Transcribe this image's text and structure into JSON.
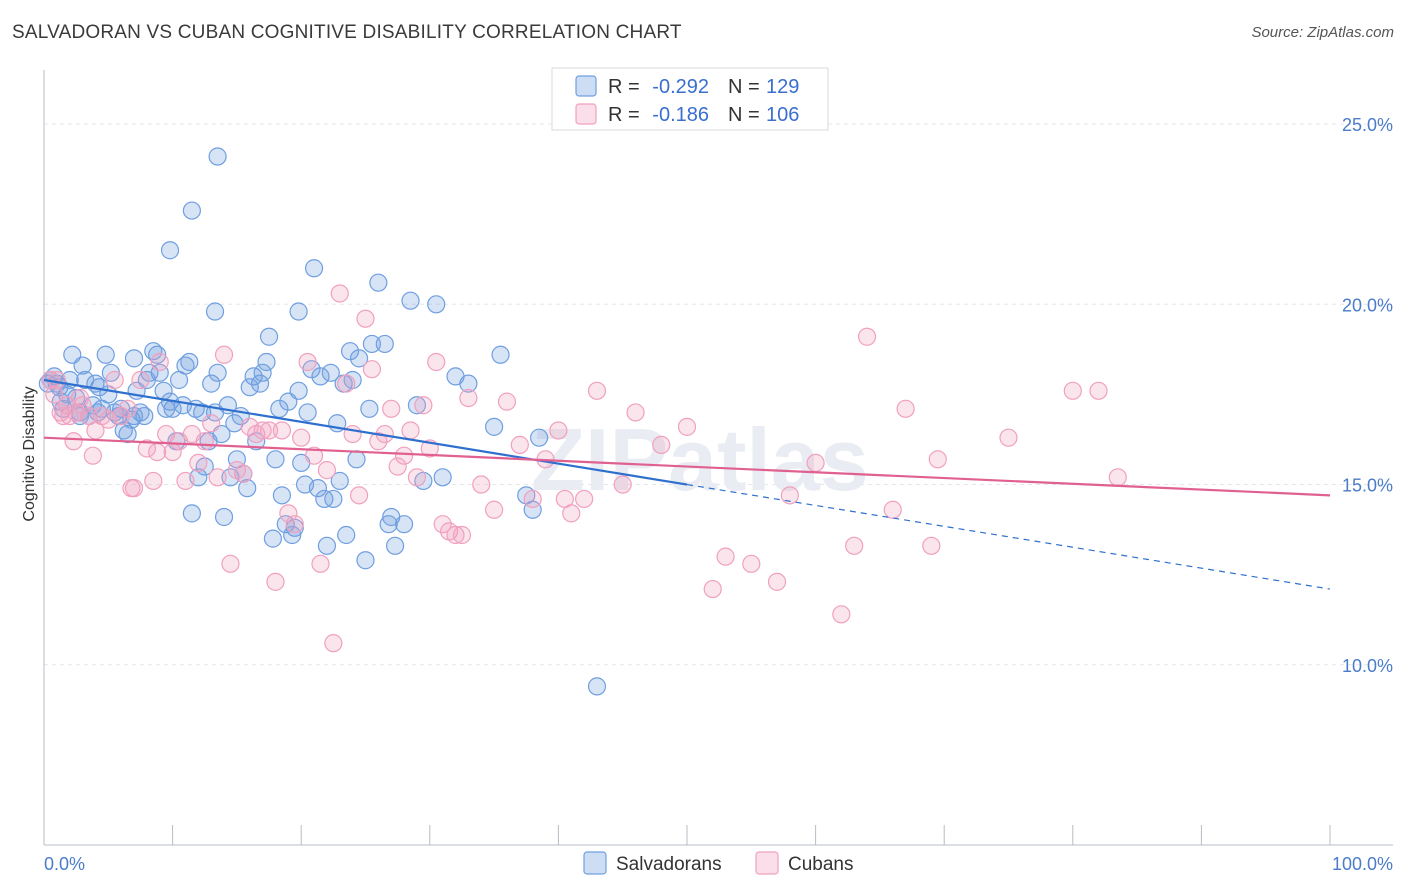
{
  "title": "SALVADORAN VS CUBAN COGNITIVE DISABILITY CORRELATION CHART",
  "source": "Source: ZipAtlas.com",
  "watermark": "ZIPatlas",
  "chart_data": {
    "type": "scatter",
    "ylabel": "Cognitive Disability",
    "xlim": [
      0,
      100
    ],
    "ylim": [
      5,
      26.5
    ],
    "y_ticks": [
      {
        "value": 10,
        "label": "10.0%"
      },
      {
        "value": 15,
        "label": "15.0%"
      },
      {
        "value": 20,
        "label": "20.0%"
      },
      {
        "value": 25,
        "label": "25.0%"
      }
    ],
    "x_tick_labels": {
      "min": "0.0%",
      "max": "100.0%"
    },
    "grid": true,
    "legend_placement": "top-center",
    "legend": {
      "rows": [
        {
          "r_label": "R = ",
          "r_value": "-0.292",
          "n_label": "N = ",
          "n_value": "129"
        },
        {
          "r_label": "R = ",
          "r_value": "-0.186",
          "n_label": "N = ",
          "n_value": "106"
        }
      ]
    },
    "series": [
      {
        "name": "Salvadorans",
        "color": "#6f9fe0",
        "line_color": "#2f6fce",
        "trend": {
          "x0": 0,
          "y0": 17.9,
          "x1": 50,
          "y1": 15.0,
          "dashed_to_x": 100,
          "dashed_to_y": 12.1
        },
        "points": [
          [
            0.5,
            17.9
          ],
          [
            0.8,
            18.0
          ],
          [
            1.0,
            17.8
          ],
          [
            1.2,
            17.7
          ],
          [
            1.5,
            17.1
          ],
          [
            1.8,
            17.5
          ],
          [
            2.0,
            17.9
          ],
          [
            2.2,
            18.6
          ],
          [
            2.5,
            17.4
          ],
          [
            2.8,
            17.0
          ],
          [
            3.0,
            18.3
          ],
          [
            3.2,
            17.9
          ],
          [
            3.5,
            16.9
          ],
          [
            3.8,
            17.2
          ],
          [
            4.0,
            17.8
          ],
          [
            4.2,
            17.0
          ],
          [
            4.5,
            17.1
          ],
          [
            4.8,
            18.6
          ],
          [
            5.0,
            17.5
          ],
          [
            5.2,
            18.1
          ],
          [
            5.5,
            17.0
          ],
          [
            5.8,
            16.9
          ],
          [
            6.0,
            17.1
          ],
          [
            6.2,
            16.5
          ],
          [
            6.5,
            16.4
          ],
          [
            6.8,
            16.8
          ],
          [
            7.0,
            18.5
          ],
          [
            7.2,
            17.6
          ],
          [
            7.5,
            17.0
          ],
          [
            7.8,
            16.9
          ],
          [
            8.0,
            17.9
          ],
          [
            8.2,
            18.1
          ],
          [
            8.5,
            18.7
          ],
          [
            8.8,
            18.6
          ],
          [
            9.0,
            18.1
          ],
          [
            9.3,
            17.6
          ],
          [
            9.5,
            17.1
          ],
          [
            9.8,
            17.3
          ],
          [
            10.0,
            17.1
          ],
          [
            10.3,
            16.2
          ],
          [
            10.5,
            17.9
          ],
          [
            10.8,
            17.2
          ],
          [
            11.0,
            18.3
          ],
          [
            11.3,
            18.4
          ],
          [
            11.5,
            14.2
          ],
          [
            11.8,
            17.1
          ],
          [
            12.0,
            15.2
          ],
          [
            12.3,
            17.0
          ],
          [
            12.5,
            15.5
          ],
          [
            12.8,
            16.2
          ],
          [
            13.0,
            17.8
          ],
          [
            13.3,
            17.0
          ],
          [
            13.5,
            18.1
          ],
          [
            13.8,
            16.4
          ],
          [
            14.0,
            14.1
          ],
          [
            14.3,
            17.2
          ],
          [
            14.5,
            15.2
          ],
          [
            14.8,
            16.7
          ],
          [
            15.0,
            15.7
          ],
          [
            15.3,
            16.9
          ],
          [
            15.5,
            15.3
          ],
          [
            15.8,
            14.9
          ],
          [
            16.0,
            17.7
          ],
          [
            16.3,
            18.0
          ],
          [
            16.5,
            16.2
          ],
          [
            16.8,
            17.8
          ],
          [
            17.0,
            18.1
          ],
          [
            17.3,
            18.4
          ],
          [
            17.5,
            19.1
          ],
          [
            17.8,
            13.5
          ],
          [
            18.0,
            15.7
          ],
          [
            18.3,
            17.1
          ],
          [
            18.5,
            14.7
          ],
          [
            18.8,
            13.9
          ],
          [
            19.0,
            17.3
          ],
          [
            19.3,
            13.6
          ],
          [
            19.5,
            13.8
          ],
          [
            19.8,
            17.6
          ],
          [
            20.0,
            15.6
          ],
          [
            20.3,
            15.0
          ],
          [
            20.5,
            17.0
          ],
          [
            20.8,
            18.2
          ],
          [
            21.0,
            21.0
          ],
          [
            21.3,
            14.9
          ],
          [
            21.5,
            18.0
          ],
          [
            21.8,
            14.6
          ],
          [
            22.0,
            13.3
          ],
          [
            22.3,
            18.1
          ],
          [
            22.5,
            14.6
          ],
          [
            22.8,
            16.7
          ],
          [
            23.0,
            15.1
          ],
          [
            23.3,
            17.8
          ],
          [
            23.5,
            13.6
          ],
          [
            23.8,
            18.7
          ],
          [
            24.0,
            17.9
          ],
          [
            24.3,
            15.7
          ],
          [
            24.5,
            18.5
          ],
          [
            25.0,
            12.9
          ],
          [
            25.3,
            17.1
          ],
          [
            25.5,
            18.9
          ],
          [
            26.0,
            20.6
          ],
          [
            26.5,
            18.9
          ],
          [
            26.8,
            13.9
          ],
          [
            27.0,
            14.1
          ],
          [
            27.3,
            13.3
          ],
          [
            28.0,
            13.9
          ],
          [
            28.5,
            20.1
          ],
          [
            29.0,
            17.2
          ],
          [
            29.5,
            15.1
          ],
          [
            30.5,
            20.0
          ],
          [
            31.0,
            15.2
          ],
          [
            32.0,
            18.0
          ],
          [
            33.0,
            17.8
          ],
          [
            35.0,
            16.6
          ],
          [
            35.5,
            18.6
          ],
          [
            37.5,
            14.7
          ],
          [
            38.0,
            14.3
          ],
          [
            38.5,
            16.3
          ],
          [
            43.0,
            9.4
          ],
          [
            9.8,
            21.5
          ],
          [
            11.5,
            22.6
          ],
          [
            13.5,
            24.1
          ],
          [
            13.3,
            19.8
          ],
          [
            19.8,
            19.8
          ],
          [
            7.0,
            16.9
          ],
          [
            4.3,
            17.7
          ],
          [
            2.8,
            16.9
          ],
          [
            1.3,
            17.3
          ],
          [
            0.3,
            17.8
          ]
        ]
      },
      {
        "name": "Cubans",
        "color": "#f0a0bf",
        "line_color": "#e06090",
        "trend": {
          "x0": 0,
          "y0": 16.3,
          "x1": 100,
          "y1": 14.7
        },
        "points": [
          [
            0.5,
            17.9
          ],
          [
            0.8,
            17.5
          ],
          [
            1.0,
            17.9
          ],
          [
            1.3,
            17.0
          ],
          [
            1.5,
            16.9
          ],
          [
            1.8,
            17.2
          ],
          [
            2.0,
            16.9
          ],
          [
            2.3,
            16.2
          ],
          [
            2.5,
            17.0
          ],
          [
            2.8,
            17.4
          ],
          [
            3.0,
            17.2
          ],
          [
            3.5,
            16.9
          ],
          [
            3.8,
            15.8
          ],
          [
            4.0,
            16.5
          ],
          [
            4.5,
            16.9
          ],
          [
            5.0,
            16.8
          ],
          [
            5.5,
            17.9
          ],
          [
            6.0,
            16.9
          ],
          [
            6.5,
            17.1
          ],
          [
            6.8,
            14.9
          ],
          [
            7.0,
            14.9
          ],
          [
            7.5,
            17.9
          ],
          [
            8.0,
            16.0
          ],
          [
            8.5,
            15.1
          ],
          [
            8.8,
            15.9
          ],
          [
            9.0,
            18.4
          ],
          [
            9.5,
            16.4
          ],
          [
            10.0,
            15.9
          ],
          [
            10.5,
            16.2
          ],
          [
            11.0,
            15.1
          ],
          [
            11.5,
            16.4
          ],
          [
            12.0,
            15.6
          ],
          [
            12.5,
            16.2
          ],
          [
            13.0,
            16.7
          ],
          [
            13.5,
            15.2
          ],
          [
            14.0,
            18.6
          ],
          [
            14.5,
            12.8
          ],
          [
            15.0,
            15.4
          ],
          [
            15.5,
            15.3
          ],
          [
            16.0,
            16.6
          ],
          [
            16.5,
            16.4
          ],
          [
            17.0,
            16.5
          ],
          [
            17.5,
            16.5
          ],
          [
            18.0,
            12.3
          ],
          [
            18.5,
            16.5
          ],
          [
            19.0,
            14.2
          ],
          [
            19.5,
            13.9
          ],
          [
            20.0,
            16.3
          ],
          [
            20.5,
            18.4
          ],
          [
            21.0,
            15.8
          ],
          [
            21.5,
            12.8
          ],
          [
            22.0,
            15.4
          ],
          [
            22.5,
            10.6
          ],
          [
            23.0,
            20.3
          ],
          [
            23.5,
            17.8
          ],
          [
            24.0,
            16.4
          ],
          [
            24.5,
            14.7
          ],
          [
            25.0,
            19.6
          ],
          [
            25.5,
            18.2
          ],
          [
            26.0,
            16.2
          ],
          [
            26.5,
            16.4
          ],
          [
            27.0,
            17.1
          ],
          [
            27.5,
            15.5
          ],
          [
            28.0,
            15.8
          ],
          [
            28.5,
            16.5
          ],
          [
            29.0,
            15.2
          ],
          [
            29.5,
            17.2
          ],
          [
            30.0,
            16.0
          ],
          [
            30.5,
            18.4
          ],
          [
            31.0,
            13.9
          ],
          [
            31.5,
            13.7
          ],
          [
            32.0,
            13.6
          ],
          [
            32.5,
            13.6
          ],
          [
            33.0,
            17.4
          ],
          [
            34.0,
            15.0
          ],
          [
            35.0,
            14.3
          ],
          [
            36.0,
            17.3
          ],
          [
            37.0,
            16.1
          ],
          [
            38.0,
            14.6
          ],
          [
            39.0,
            15.7
          ],
          [
            40.0,
            16.5
          ],
          [
            40.5,
            14.6
          ],
          [
            41.0,
            14.2
          ],
          [
            42.0,
            14.6
          ],
          [
            43.0,
            17.6
          ],
          [
            45.0,
            15.0
          ],
          [
            46.0,
            17.0
          ],
          [
            48.0,
            16.1
          ],
          [
            50.0,
            16.6
          ],
          [
            52.0,
            12.1
          ],
          [
            53.0,
            13.0
          ],
          [
            55.0,
            12.8
          ],
          [
            57.0,
            12.3
          ],
          [
            58.0,
            14.7
          ],
          [
            60.0,
            15.6
          ],
          [
            62.0,
            11.4
          ],
          [
            63.0,
            13.3
          ],
          [
            64.0,
            19.1
          ],
          [
            66.0,
            14.3
          ],
          [
            67.0,
            17.1
          ],
          [
            69.0,
            13.3
          ],
          [
            69.5,
            15.7
          ],
          [
            75.0,
            16.3
          ],
          [
            80.0,
            17.6
          ],
          [
            82.0,
            17.6
          ],
          [
            83.5,
            15.2
          ]
        ]
      }
    ]
  }
}
